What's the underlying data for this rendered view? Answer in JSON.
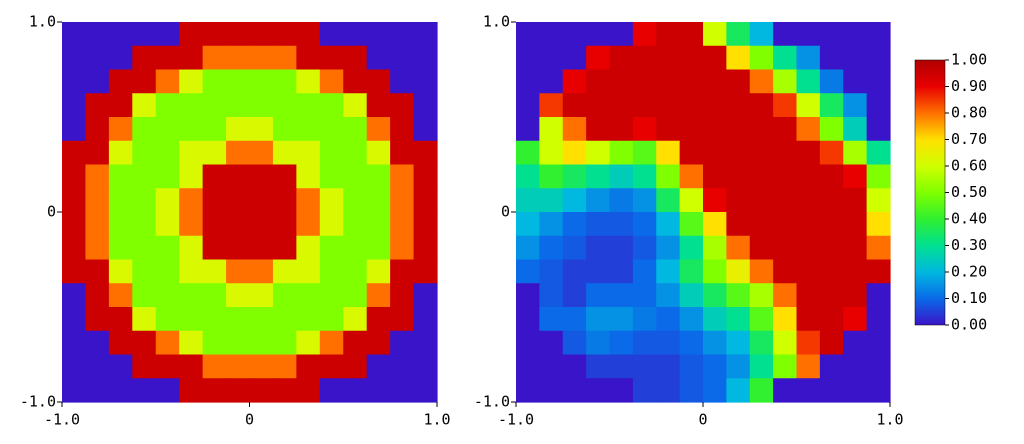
{
  "chart_data": [
    {
      "type": "heatmap",
      "xlim": [
        -1,
        1
      ],
      "ylim": [
        -1,
        1
      ],
      "xticks": [
        {
          "value": -1,
          "label": "-1.0"
        },
        0,
        {
          "value": 1,
          "label": "1.0"
        }
      ],
      "yticks": [
        {
          "value": -1,
          "label": "-1.0"
        },
        0,
        {
          "value": 1,
          "label": "1.0"
        }
      ],
      "colorscale": [
        [
          0,
          "#3a14c8"
        ],
        [
          0.1,
          "#0a6ae8"
        ],
        [
          0.2,
          "#00b8e0"
        ],
        [
          0.3,
          "#00e090"
        ],
        [
          0.4,
          "#30f030"
        ],
        [
          0.5,
          "#80ff00"
        ],
        [
          0.6,
          "#d0ff00"
        ],
        [
          0.7,
          "#ffe000"
        ],
        [
          0.8,
          "#ff7000"
        ],
        [
          0.9,
          "#e80000"
        ],
        [
          1,
          "#b00000"
        ]
      ],
      "z": [
        [
          0,
          0,
          0,
          0,
          0,
          0.95,
          0.95,
          0.95,
          0.95,
          0.95,
          0.95,
          0,
          0,
          0,
          0,
          0
        ],
        [
          0,
          0,
          0,
          0.95,
          0.95,
          0.95,
          0.8,
          0.8,
          0.8,
          0.8,
          0.95,
          0.95,
          0.95,
          0,
          0,
          0
        ],
        [
          0,
          0,
          0.95,
          0.95,
          0.8,
          0.62,
          0.5,
          0.5,
          0.5,
          0.5,
          0.62,
          0.8,
          0.95,
          0.95,
          0,
          0
        ],
        [
          0,
          0.95,
          0.95,
          0.62,
          0.5,
          0.5,
          0.5,
          0.5,
          0.5,
          0.5,
          0.5,
          0.5,
          0.62,
          0.95,
          0.95,
          0
        ],
        [
          0,
          0.95,
          0.8,
          0.5,
          0.5,
          0.5,
          0.5,
          0.62,
          0.62,
          0.5,
          0.5,
          0.5,
          0.5,
          0.8,
          0.95,
          0
        ],
        [
          0.95,
          0.95,
          0.62,
          0.5,
          0.5,
          0.62,
          0.62,
          0.8,
          0.8,
          0.62,
          0.62,
          0.5,
          0.5,
          0.62,
          0.95,
          0.95
        ],
        [
          0.95,
          0.8,
          0.5,
          0.5,
          0.5,
          0.62,
          0.95,
          0.95,
          0.95,
          0.95,
          0.62,
          0.5,
          0.5,
          0.5,
          0.8,
          0.95
        ],
        [
          0.95,
          0.8,
          0.5,
          0.5,
          0.62,
          0.8,
          0.95,
          0.95,
          0.95,
          0.95,
          0.8,
          0.62,
          0.5,
          0.5,
          0.8,
          0.95
        ],
        [
          0.95,
          0.8,
          0.5,
          0.5,
          0.62,
          0.8,
          0.95,
          0.95,
          0.95,
          0.95,
          0.8,
          0.62,
          0.5,
          0.5,
          0.8,
          0.95
        ],
        [
          0.95,
          0.8,
          0.5,
          0.5,
          0.5,
          0.62,
          0.95,
          0.95,
          0.95,
          0.95,
          0.62,
          0.5,
          0.5,
          0.5,
          0.8,
          0.95
        ],
        [
          0.95,
          0.95,
          0.62,
          0.5,
          0.5,
          0.62,
          0.62,
          0.8,
          0.8,
          0.62,
          0.62,
          0.5,
          0.5,
          0.62,
          0.95,
          0.95
        ],
        [
          0,
          0.95,
          0.8,
          0.5,
          0.5,
          0.5,
          0.5,
          0.62,
          0.62,
          0.5,
          0.5,
          0.5,
          0.5,
          0.8,
          0.95,
          0
        ],
        [
          0,
          0.95,
          0.95,
          0.62,
          0.5,
          0.5,
          0.5,
          0.5,
          0.5,
          0.5,
          0.5,
          0.5,
          0.62,
          0.95,
          0.95,
          0
        ],
        [
          0,
          0,
          0.95,
          0.95,
          0.8,
          0.62,
          0.5,
          0.5,
          0.5,
          0.5,
          0.62,
          0.8,
          0.95,
          0.95,
          0,
          0
        ],
        [
          0,
          0,
          0,
          0.95,
          0.95,
          0.95,
          0.8,
          0.8,
          0.8,
          0.8,
          0.95,
          0.95,
          0.95,
          0,
          0,
          0
        ],
        [
          0,
          0,
          0,
          0,
          0,
          0.95,
          0.95,
          0.95,
          0.95,
          0.95,
          0.95,
          0,
          0,
          0,
          0,
          0
        ]
      ]
    },
    {
      "type": "heatmap",
      "xlim": [
        -1,
        1
      ],
      "ylim": [
        -1,
        1
      ],
      "xticks": [
        {
          "value": -1,
          "label": "-1.0"
        },
        0,
        {
          "value": 1,
          "label": "1.0"
        }
      ],
      "yticks": [
        {
          "value": -1,
          "label": "-1.0"
        },
        0,
        {
          "value": 1,
          "label": "1.0"
        }
      ],
      "colorscale": [
        [
          0,
          "#3a14c8"
        ],
        [
          0.1,
          "#0a6ae8"
        ],
        [
          0.2,
          "#00b8e0"
        ],
        [
          0.3,
          "#00e090"
        ],
        [
          0.4,
          "#30f030"
        ],
        [
          0.5,
          "#80ff00"
        ],
        [
          0.6,
          "#d0ff00"
        ],
        [
          0.7,
          "#ffe000"
        ],
        [
          0.8,
          "#ff7000"
        ],
        [
          0.9,
          "#e80000"
        ],
        [
          1,
          "#b00000"
        ]
      ],
      "z": [
        [
          0,
          0,
          0,
          0,
          0,
          0.9,
          0.95,
          0.95,
          0.6,
          0.35,
          0.2,
          0,
          0,
          0,
          0,
          0
        ],
        [
          0,
          0,
          0,
          0.9,
          0.95,
          0.95,
          0.95,
          0.95,
          0.95,
          0.7,
          0.5,
          0.3,
          0.15,
          0,
          0,
          0
        ],
        [
          0,
          0,
          0.9,
          0.95,
          0.95,
          0.95,
          0.95,
          0.95,
          0.95,
          0.95,
          0.8,
          0.55,
          0.3,
          0.12,
          0,
          0
        ],
        [
          0,
          0.85,
          0.95,
          0.95,
          0.95,
          0.95,
          0.95,
          0.95,
          0.95,
          0.95,
          0.95,
          0.85,
          0.6,
          0.35,
          0.15,
          0
        ],
        [
          0,
          0.6,
          0.8,
          0.95,
          0.95,
          0.9,
          0.95,
          0.95,
          0.95,
          0.95,
          0.95,
          0.95,
          0.8,
          0.5,
          0.25,
          0
        ],
        [
          0.4,
          0.6,
          0.7,
          0.6,
          0.5,
          0.45,
          0.7,
          0.95,
          0.95,
          0.95,
          0.95,
          0.95,
          0.95,
          0.85,
          0.55,
          0.3
        ],
        [
          0.3,
          0.4,
          0.35,
          0.3,
          0.25,
          0.3,
          0.5,
          0.8,
          0.95,
          0.95,
          0.95,
          0.95,
          0.95,
          0.95,
          0.9,
          0.5
        ],
        [
          0.25,
          0.25,
          0.2,
          0.15,
          0.12,
          0.15,
          0.35,
          0.6,
          0.9,
          0.95,
          0.95,
          0.95,
          0.95,
          0.95,
          0.95,
          0.6
        ],
        [
          0.2,
          0.15,
          0.1,
          0.08,
          0.08,
          0.1,
          0.2,
          0.45,
          0.7,
          0.95,
          0.95,
          0.95,
          0.95,
          0.95,
          0.95,
          0.7
        ],
        [
          0.15,
          0.1,
          0.08,
          0.05,
          0.05,
          0.08,
          0.15,
          0.3,
          0.55,
          0.8,
          0.95,
          0.95,
          0.95,
          0.95,
          0.95,
          0.8
        ],
        [
          0.1,
          0.08,
          0.05,
          0.05,
          0.05,
          0.1,
          0.2,
          0.35,
          0.5,
          0.65,
          0.8,
          0.95,
          0.95,
          0.95,
          0.95,
          0.95
        ],
        [
          0,
          0.08,
          0.05,
          0.1,
          0.1,
          0.1,
          0.15,
          0.25,
          0.35,
          0.45,
          0.55,
          0.8,
          0.95,
          0.95,
          0.95,
          0
        ],
        [
          0,
          0.1,
          0.1,
          0.15,
          0.15,
          0.12,
          0.1,
          0.15,
          0.25,
          0.3,
          0.45,
          0.7,
          0.95,
          0.95,
          0.9,
          0
        ],
        [
          0,
          0,
          0.08,
          0.12,
          0.1,
          0.08,
          0.08,
          0.1,
          0.15,
          0.2,
          0.35,
          0.6,
          0.85,
          0.95,
          0,
          0
        ],
        [
          0,
          0,
          0,
          0.05,
          0.05,
          0.05,
          0.05,
          0.08,
          0.1,
          0.15,
          0.3,
          0.5,
          0.8,
          0,
          0,
          0
        ],
        [
          0,
          0,
          0,
          0,
          0,
          0.05,
          0.05,
          0.08,
          0.1,
          0.2,
          0.4,
          0,
          0,
          0,
          0,
          0
        ]
      ],
      "colorbar": {
        "zlim": [
          0,
          1
        ],
        "ticks": [
          {
            "value": 0,
            "label": "0.00"
          },
          {
            "value": 0.1,
            "label": "0.10"
          },
          {
            "value": 0.2,
            "label": "0.20"
          },
          {
            "value": 0.3,
            "label": "0.30"
          },
          {
            "value": 0.4,
            "label": "0.40"
          },
          {
            "value": 0.5,
            "label": "0.50"
          },
          {
            "value": 0.6,
            "label": "0.60"
          },
          {
            "value": 0.7,
            "label": "0.70"
          },
          {
            "value": 0.8,
            "label": "0.80"
          },
          {
            "value": 0.9,
            "label": "0.90"
          },
          {
            "value": 1,
            "label": "1.00"
          }
        ]
      }
    }
  ]
}
